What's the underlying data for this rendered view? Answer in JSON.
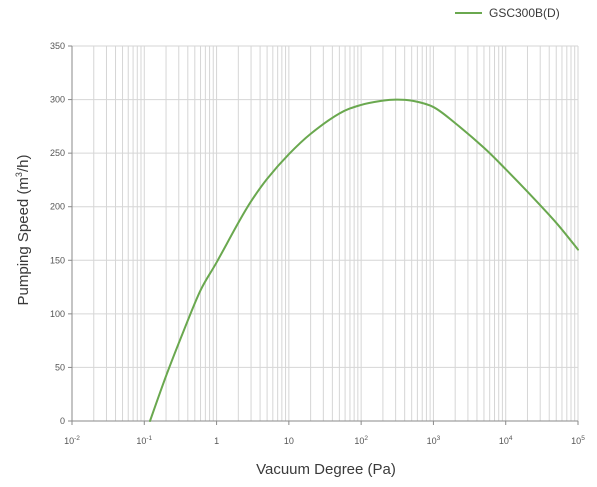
{
  "chart_data": {
    "type": "line",
    "xscale": "log",
    "xlim": [
      0.01,
      100000
    ],
    "ylim": [
      0,
      350
    ],
    "grid": true,
    "legend_position": "top-right",
    "xlabel_parts": [
      "Vacuum Degree (Pa)"
    ],
    "ylabel_parts": [
      "Pumping Speed (m",
      "3",
      "/h)"
    ],
    "x_ticks": [
      {
        "value": 0.01,
        "base": "10",
        "exp": "-2"
      },
      {
        "value": 0.1,
        "base": "10",
        "exp": "-1"
      },
      {
        "value": 1,
        "base": "1",
        "exp": ""
      },
      {
        "value": 10,
        "base": "10",
        "exp": ""
      },
      {
        "value": 100,
        "base": "10",
        "exp": "2"
      },
      {
        "value": 1000,
        "base": "10",
        "exp": "3"
      },
      {
        "value": 10000,
        "base": "10",
        "exp": "4"
      },
      {
        "value": 100000,
        "base": "10",
        "exp": "5"
      }
    ],
    "y_ticks": [
      0,
      50,
      100,
      150,
      200,
      250,
      300,
      350
    ],
    "series": [
      {
        "name": "GSC300B(D)",
        "color": "#6aa84f",
        "x": [
          0.12,
          0.2,
          0.35,
          0.6,
          1,
          2,
          3,
          5,
          10,
          20,
          50,
          100,
          200,
          300,
          500,
          1000,
          2000,
          5000,
          10000,
          20000,
          50000,
          100000
        ],
        "y": [
          0,
          42,
          84,
          122,
          148,
          185,
          205,
          226,
          249,
          268,
          287,
          295,
          299,
          300,
          299,
          293,
          278,
          255,
          235,
          214,
          185,
          160
        ]
      }
    ]
  }
}
